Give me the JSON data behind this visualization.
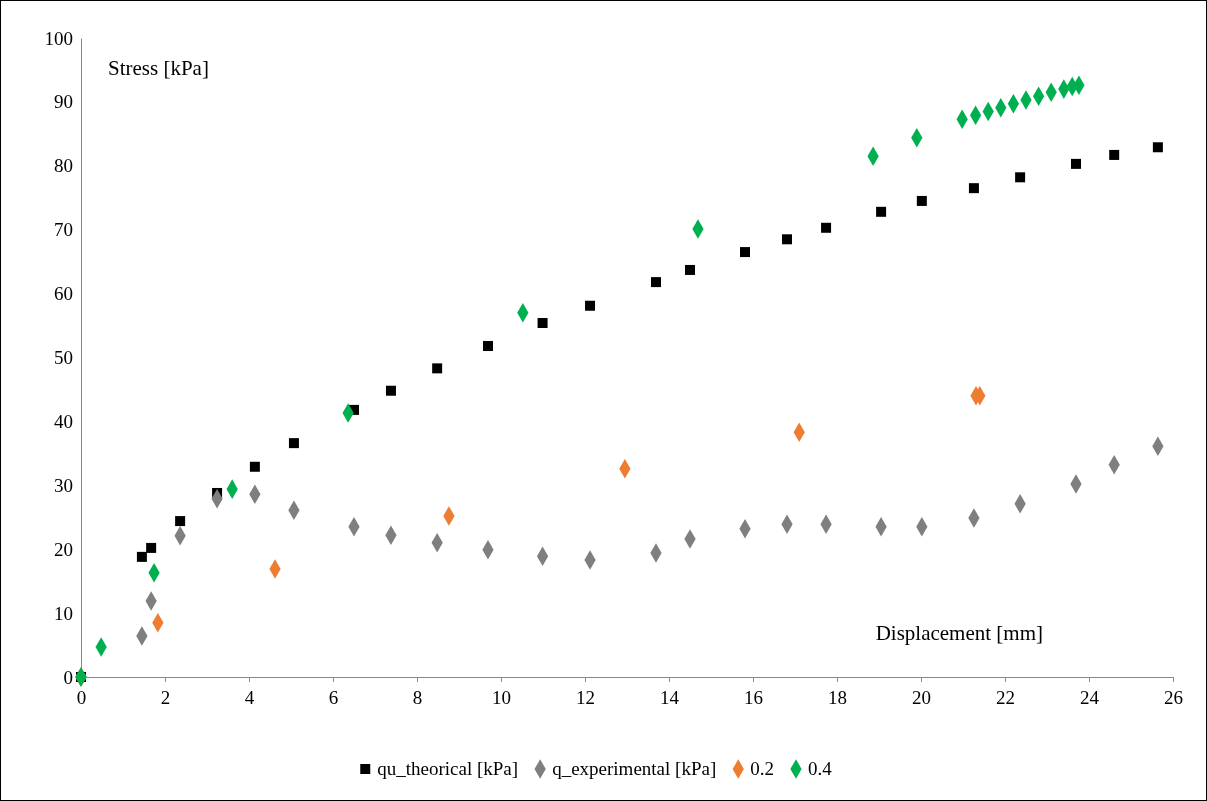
{
  "chart_data": {
    "type": "scatter",
    "xlabel": "Displacement [mm]",
    "ylabel": "Stress [kPa]",
    "xlim": [
      0,
      26
    ],
    "xticks": [
      0,
      2,
      4,
      6,
      8,
      10,
      12,
      14,
      16,
      18,
      20,
      22,
      24,
      26
    ],
    "ylim": [
      0,
      100
    ],
    "yticks": [
      0,
      10,
      20,
      30,
      40,
      50,
      60,
      70,
      80,
      90,
      100
    ],
    "grid": false,
    "legend": "bottom",
    "series": [
      {
        "name": "qu_theorical [kPa]",
        "color": "#000000",
        "marker": "square",
        "x": [
          0,
          1.45,
          1.67,
          2.36,
          3.24,
          4.14,
          5.07,
          6.5,
          7.38,
          8.48,
          9.69,
          10.99,
          12.12,
          13.69,
          14.5,
          15.81,
          16.81,
          17.74,
          19.05,
          20.02,
          21.26,
          22.36,
          23.69,
          24.6,
          25.64
        ],
        "values": [
          0,
          18.8,
          20.2,
          24.4,
          28.8,
          32.9,
          36.6,
          41.8,
          44.8,
          48.3,
          51.8,
          55.4,
          58.1,
          61.8,
          63.7,
          66.5,
          68.5,
          70.3,
          72.8,
          74.5,
          76.5,
          78.2,
          80.3,
          81.7,
          82.9
        ]
      },
      {
        "name": "q_experimental [kPa]",
        "color": "#7f7f7f",
        "marker": "diamond",
        "x": [
          0,
          1.45,
          1.67,
          2.36,
          3.24,
          4.14,
          5.07,
          6.5,
          7.38,
          8.48,
          9.69,
          10.99,
          12.12,
          13.69,
          14.5,
          15.81,
          16.81,
          17.74,
          19.05,
          20.02,
          21.26,
          22.36,
          23.69,
          24.6,
          25.64
        ],
        "values": [
          0,
          6.4,
          11.9,
          22.1,
          27.9,
          28.6,
          26.1,
          23.5,
          22.2,
          21.0,
          19.9,
          18.9,
          18.3,
          19.4,
          21.6,
          23.2,
          23.9,
          23.9,
          23.5,
          23.5,
          24.9,
          27.1,
          30.2,
          33.2,
          36.1
        ]
      },
      {
        "name": "0.2",
        "color": "#ed7d31",
        "marker": "diamond",
        "x": [
          0,
          1.83,
          4.62,
          8.76,
          12.95,
          17.1,
          21.31,
          21.4
        ],
        "values": [
          0,
          8.5,
          16.9,
          25.2,
          32.6,
          38.3,
          44.0,
          44.0
        ]
      },
      {
        "name": "0.4",
        "color": "#00b050",
        "marker": "diamond",
        "x": [
          0,
          0.48,
          1.74,
          3.6,
          6.36,
          10.52,
          14.69,
          18.86,
          19.9,
          20.98,
          21.3,
          21.6,
          21.9,
          22.2,
          22.5,
          22.8,
          23.1,
          23.4,
          23.6,
          23.76
        ],
        "values": [
          0,
          4.7,
          16.3,
          29.4,
          41.3,
          57.0,
          70.1,
          81.5,
          84.4,
          87.3,
          87.9,
          88.5,
          89.1,
          89.7,
          90.3,
          90.9,
          91.5,
          92.0,
          92.4,
          92.6
        ]
      }
    ]
  }
}
